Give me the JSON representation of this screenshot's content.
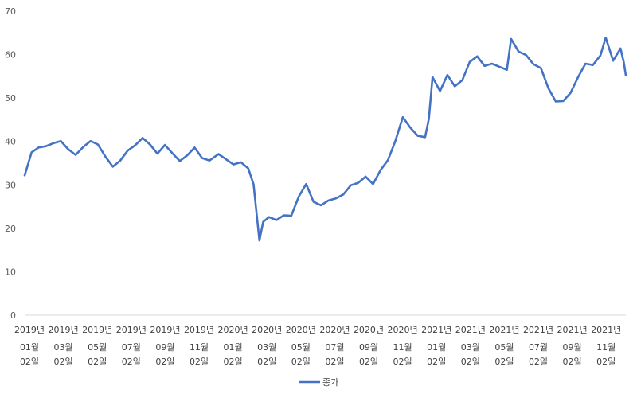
{
  "chart_data": {
    "type": "line",
    "title": "",
    "xlabel": "",
    "ylabel": "",
    "ylim": [
      0,
      70
    ],
    "yticks": [
      0,
      10,
      20,
      30,
      40,
      50,
      60,
      70
    ],
    "grid": false,
    "legend": {
      "position": "bottom",
      "entries": [
        "종가"
      ]
    },
    "x_tick_labels": [
      [
        "2019년",
        "01월",
        "02일"
      ],
      [
        "2019년",
        "03월",
        "02일"
      ],
      [
        "2019년",
        "05월",
        "02일"
      ],
      [
        "2019년",
        "07월",
        "02일"
      ],
      [
        "2019년",
        "09월",
        "02일"
      ],
      [
        "2019년",
        "11월",
        "02일"
      ],
      [
        "2020년",
        "01월",
        "02일"
      ],
      [
        "2020년",
        "03월",
        "02일"
      ],
      [
        "2020년",
        "05월",
        "02일"
      ],
      [
        "2020년",
        "07월",
        "02일"
      ],
      [
        "2020년",
        "09월",
        "02일"
      ],
      [
        "2020년",
        "11월",
        "02일"
      ],
      [
        "2021년",
        "01월",
        "02일"
      ],
      [
        "2021년",
        "03월",
        "02일"
      ],
      [
        "2021년",
        "05월",
        "02일"
      ],
      [
        "2021년",
        "07월",
        "02일"
      ],
      [
        "2021년",
        "09월",
        "02일"
      ],
      [
        "2021년",
        "11월",
        "02일"
      ]
    ],
    "series": [
      {
        "name": "종가",
        "color": "#4472C4",
        "points": [
          [
            "2019-01-02",
            32.2
          ],
          [
            "2019-01-15",
            37.5
          ],
          [
            "2019-01-28",
            38.6
          ],
          [
            "2019-02-11",
            38.9
          ],
          [
            "2019-02-25",
            39.6
          ],
          [
            "2019-03-11",
            40.1
          ],
          [
            "2019-03-25",
            38.2
          ],
          [
            "2019-04-08",
            36.9
          ],
          [
            "2019-04-22",
            38.7
          ],
          [
            "2019-05-06",
            40.1
          ],
          [
            "2019-05-20",
            39.3
          ],
          [
            "2019-06-03",
            36.5
          ],
          [
            "2019-06-17",
            34.2
          ],
          [
            "2019-07-01",
            35.6
          ],
          [
            "2019-07-15",
            37.9
          ],
          [
            "2019-07-29",
            39.1
          ],
          [
            "2019-08-12",
            40.8
          ],
          [
            "2019-08-26",
            39.3
          ],
          [
            "2019-09-09",
            37.2
          ],
          [
            "2019-09-23",
            39.2
          ],
          [
            "2019-10-07",
            37.3
          ],
          [
            "2019-10-21",
            35.5
          ],
          [
            "2019-11-04",
            36.8
          ],
          [
            "2019-11-18",
            38.6
          ],
          [
            "2019-12-02",
            36.2
          ],
          [
            "2019-12-16",
            35.6
          ],
          [
            "2020-01-02",
            37.1
          ],
          [
            "2020-01-16",
            35.9
          ],
          [
            "2020-01-30",
            34.7
          ],
          [
            "2020-02-13",
            35.2
          ],
          [
            "2020-02-27",
            33.8
          ],
          [
            "2020-03-08",
            30.1
          ],
          [
            "2020-03-13",
            24.2
          ],
          [
            "2020-03-19",
            17.2
          ],
          [
            "2020-03-26",
            21.5
          ],
          [
            "2020-04-06",
            22.6
          ],
          [
            "2020-04-20",
            21.9
          ],
          [
            "2020-05-04",
            23.0
          ],
          [
            "2020-05-18",
            22.9
          ],
          [
            "2020-06-01",
            27.3
          ],
          [
            "2020-06-15",
            30.2
          ],
          [
            "2020-06-29",
            26.1
          ],
          [
            "2020-07-13",
            25.3
          ],
          [
            "2020-07-27",
            26.4
          ],
          [
            "2020-08-10",
            26.9
          ],
          [
            "2020-08-24",
            27.8
          ],
          [
            "2020-09-07",
            29.9
          ],
          [
            "2020-09-21",
            30.5
          ],
          [
            "2020-10-05",
            31.9
          ],
          [
            "2020-10-19",
            30.2
          ],
          [
            "2020-11-02",
            33.4
          ],
          [
            "2020-11-16",
            35.7
          ],
          [
            "2020-11-30",
            40.1
          ],
          [
            "2020-12-14",
            45.6
          ],
          [
            "2020-12-28",
            43.2
          ],
          [
            "2021-01-11",
            41.3
          ],
          [
            "2021-01-25",
            41.0
          ],
          [
            "2021-02-01",
            45.2
          ],
          [
            "2021-02-08",
            54.8
          ],
          [
            "2021-02-22",
            51.6
          ],
          [
            "2021-03-08",
            55.3
          ],
          [
            "2021-03-22",
            52.7
          ],
          [
            "2021-04-05",
            54.1
          ],
          [
            "2021-04-19",
            58.3
          ],
          [
            "2021-05-03",
            59.6
          ],
          [
            "2021-05-17",
            57.4
          ],
          [
            "2021-05-31",
            57.9
          ],
          [
            "2021-06-14",
            57.2
          ],
          [
            "2021-06-28",
            56.5
          ],
          [
            "2021-07-06",
            63.6
          ],
          [
            "2021-07-20",
            60.7
          ],
          [
            "2021-08-03",
            59.9
          ],
          [
            "2021-08-17",
            57.8
          ],
          [
            "2021-08-31",
            56.9
          ],
          [
            "2021-09-14",
            52.3
          ],
          [
            "2021-09-28",
            49.2
          ],
          [
            "2021-10-12",
            49.3
          ],
          [
            "2021-10-26",
            51.2
          ],
          [
            "2021-11-09",
            54.8
          ],
          [
            "2021-11-23",
            57.9
          ],
          [
            "2021-12-07",
            57.6
          ],
          [
            "2021-12-21",
            59.8
          ],
          [
            "2021-12-31",
            63.9
          ],
          [
            "2022-01-14",
            58.6
          ],
          [
            "2022-01-28",
            61.4
          ],
          [
            "2022-02-03",
            58.3
          ],
          [
            "2022-02-07",
            55.2
          ]
        ]
      }
    ]
  }
}
